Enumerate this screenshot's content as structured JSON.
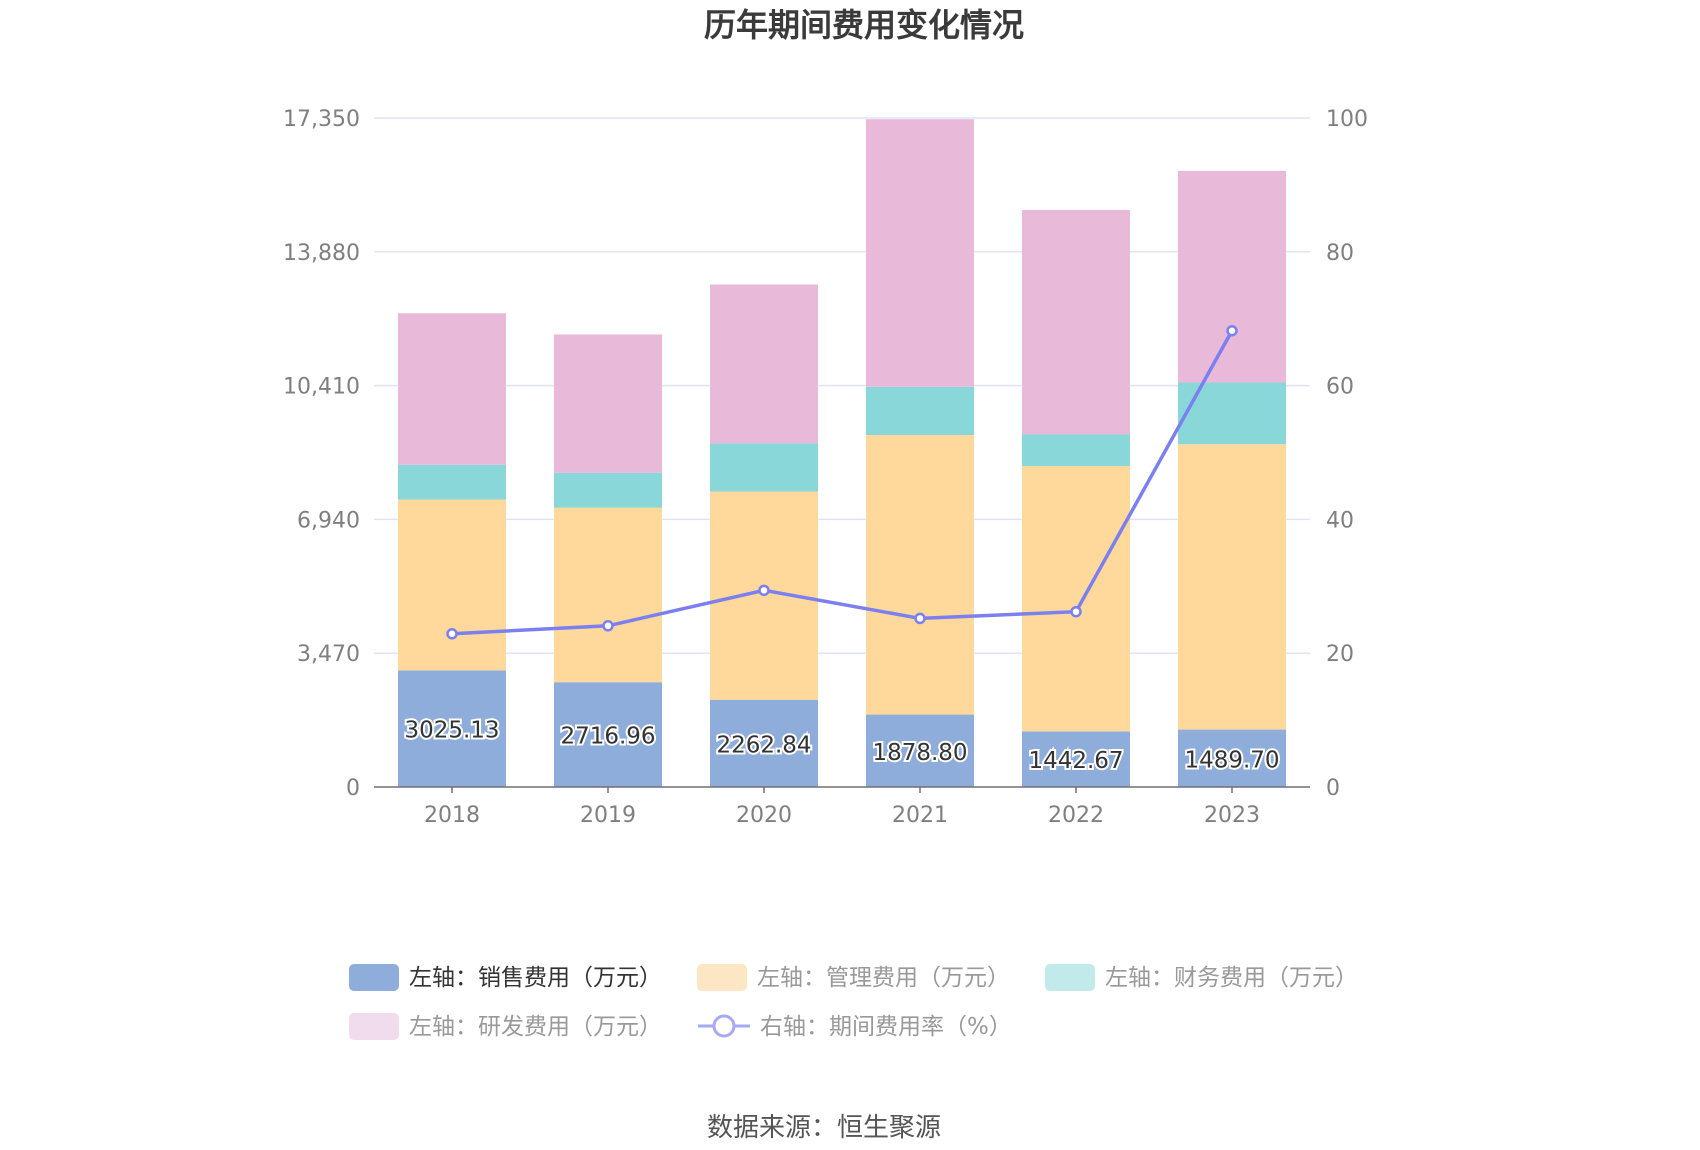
{
  "chart_data": {
    "type": "bar",
    "title": "历年期间费用变化情况",
    "categories": [
      "2018",
      "2019",
      "2020",
      "2021",
      "2022",
      "2023"
    ],
    "y_left": {
      "min": 0,
      "max": 17350,
      "ticks": [
        "0",
        "3,470",
        "6,940",
        "10,410",
        "13,880",
        "17,350"
      ],
      "tick_values": [
        0,
        3470,
        6940,
        10410,
        13880,
        17350
      ]
    },
    "y_right": {
      "min": 0,
      "max": 100,
      "ticks": [
        "0",
        "20",
        "40",
        "60",
        "80",
        "100"
      ],
      "tick_values": [
        0,
        20,
        40,
        60,
        80,
        100
      ]
    },
    "grid": true,
    "stacked": true,
    "series": [
      {
        "name": "左轴：销售费用（万元）",
        "axis": "left",
        "kind": "bar",
        "color": "#8eaddb",
        "values": [
          3025.13,
          2716.96,
          2262.84,
          1878.8,
          1442.67,
          1489.7
        ],
        "labels": [
          "3025.13",
          "2716.96",
          "2262.84",
          "1878.80",
          "1442.67",
          "1489.70"
        ]
      },
      {
        "name": "左轴：管理费用（万元）",
        "axis": "left",
        "kind": "bar",
        "color": "#fed99b",
        "values": [
          4430,
          4530,
          5400,
          7250,
          6880,
          7400
        ]
      },
      {
        "name": "左轴：财务费用（万元）",
        "axis": "left",
        "kind": "bar",
        "color": "#89d7d8",
        "values": [
          900,
          900,
          1250,
          1250,
          820,
          1600
        ]
      },
      {
        "name": "左轴：研发费用（万元）",
        "axis": "left",
        "kind": "bar",
        "color": "#e8b9d9",
        "values": [
          3930,
          3590,
          4120,
          6940,
          5820,
          5490
        ]
      },
      {
        "name": "右轴：期间费用率（%）",
        "axis": "right",
        "kind": "line",
        "color": "#7b7ff0",
        "values": [
          22.9,
          24.1,
          29.4,
          25.2,
          26.2,
          68.2
        ]
      }
    ],
    "legend_position": "bottom",
    "legend_colors": {
      "legend_fill_0": "#8eaddb",
      "legend_fill_1": "#fde6c3",
      "legend_fill_2": "#c3eaeb",
      "legend_fill_3": "#f0dcec",
      "legend_line": "#a6a9f4"
    },
    "legend_text_colors": [
      "#333333",
      "#999999",
      "#999999",
      "#999999",
      "#999999"
    ]
  },
  "footer": {
    "source": "数据来源：恒生聚源"
  }
}
